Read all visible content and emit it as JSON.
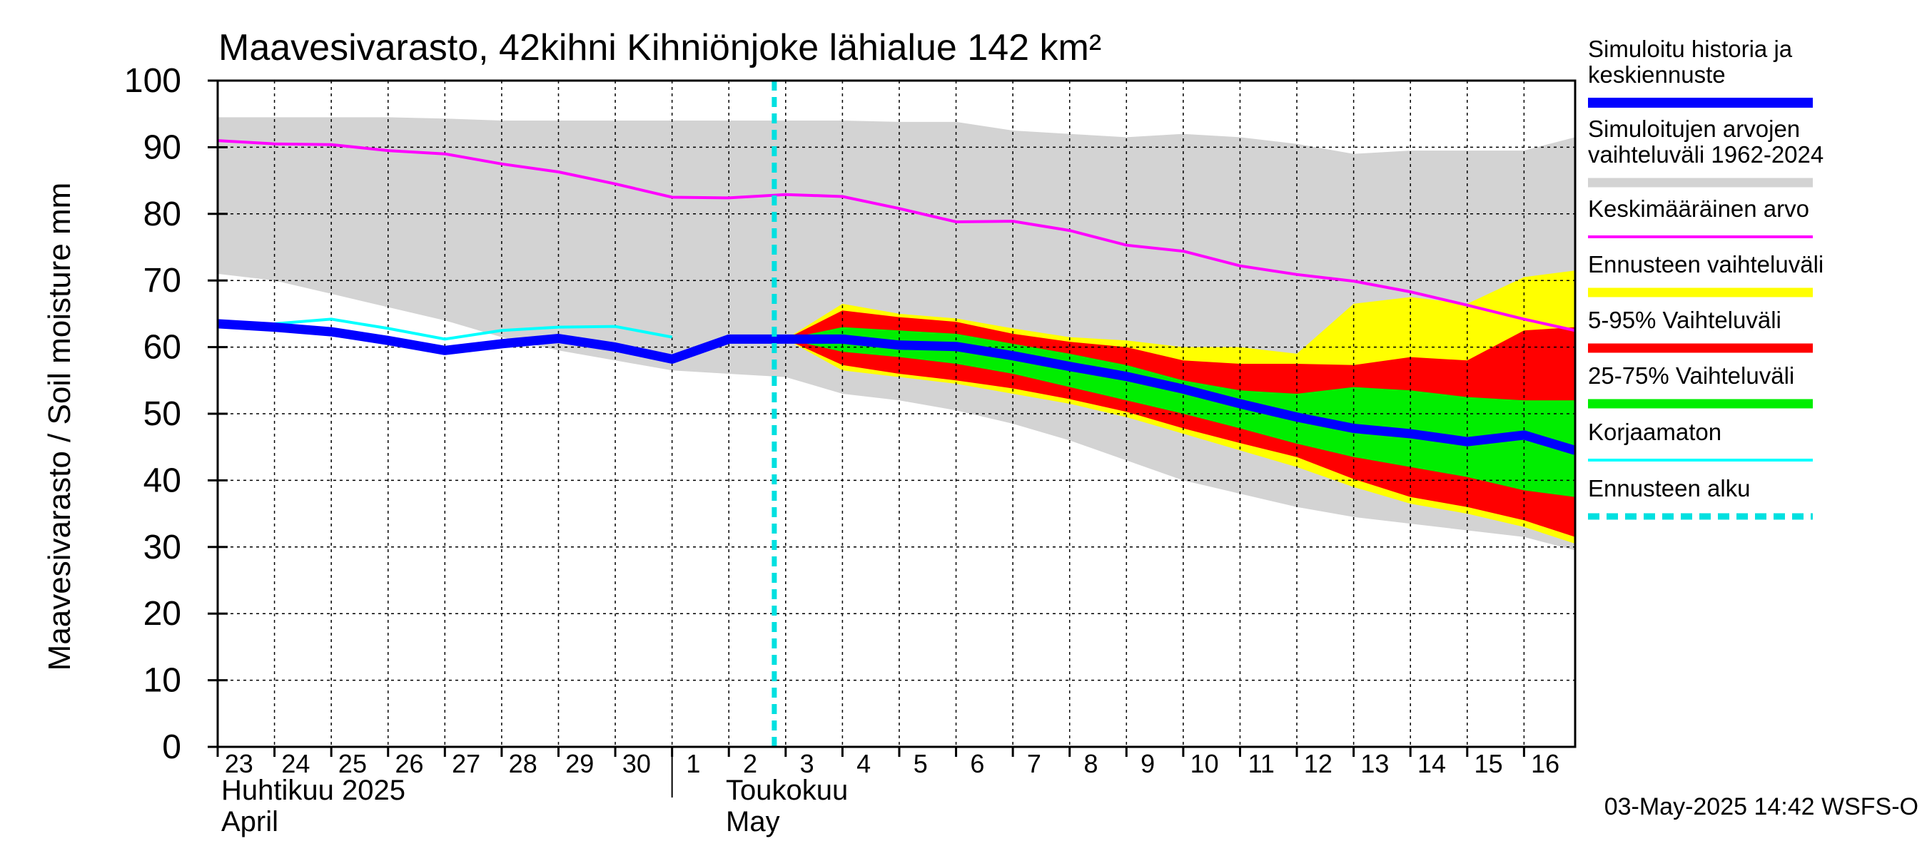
{
  "chart_data": {
    "type": "area",
    "title": "Maavesivarasto, 42kihni Kihniönjoke lähialue 142 km²",
    "ylabel": "Maavesivarasto / Soil moisture   mm",
    "ylim": [
      0,
      100
    ],
    "yticks": [
      "0",
      "10",
      "20",
      "30",
      "40",
      "50",
      "60",
      "70",
      "80",
      "90",
      "100"
    ],
    "grid": true,
    "legend_position": "right",
    "day_ticks": [
      "23",
      "24",
      "25",
      "26",
      "27",
      "28",
      "29",
      "30",
      "1",
      "2",
      "3",
      "4",
      "5",
      "6",
      "7",
      "8",
      "9",
      "10",
      "11",
      "12",
      "13",
      "14",
      "15",
      "16"
    ],
    "x_start": "2025-04-23",
    "x_end": "2025-05-16",
    "month_labels": {
      "april_fi": "Huhtikuu  2025",
      "april_en": "April",
      "may_fi": "Toukokuu",
      "may_en": "May"
    },
    "forecast_start": "2025-05-03",
    "timestamp": "03-May-2025 14:42 WSFS-O",
    "colors": {
      "history": "#0000ff",
      "range": "#d3d3d3",
      "mean": "#ff00ff",
      "ennuste": "#ffff00",
      "p5_95": "#ff0000",
      "p25_75": "#00ee00",
      "korjaamaton": "#00ffff",
      "start": "#00e0e0"
    },
    "legend": [
      {
        "key": "history",
        "label": "Simuloitu historia ja keskiennuste",
        "style": "thick"
      },
      {
        "key": "range",
        "label": "Simuloitujen arvojen vaihteluväli 1962-2024",
        "style": "band"
      },
      {
        "key": "mean",
        "label": "Keskimääräinen arvo",
        "style": "thin"
      },
      {
        "key": "ennuste",
        "label": "Ennusteen vaihteluväli",
        "style": "band"
      },
      {
        "key": "p5_95",
        "label": "5-95% Vaihteluväli",
        "style": "band"
      },
      {
        "key": "p25_75",
        "label": "25-75% Vaihteluväli",
        "style": "band"
      },
      {
        "key": "korjaamaton",
        "label": "Korjaamaton",
        "style": "thin"
      },
      {
        "key": "start",
        "label": "Ennusteen alku",
        "style": "dashed"
      }
    ],
    "series": {
      "range_upper": [
        [
          0,
          94.5
        ],
        [
          1,
          94.5
        ],
        [
          2,
          94.5
        ],
        [
          3,
          94.5
        ],
        [
          4,
          94.3
        ],
        [
          5,
          94.0
        ],
        [
          6,
          94.0
        ],
        [
          7,
          94.0
        ],
        [
          8,
          94.0
        ],
        [
          9,
          94.0
        ],
        [
          10,
          94.0
        ],
        [
          11,
          94.0
        ],
        [
          12,
          93.8
        ],
        [
          13,
          93.8
        ],
        [
          14,
          92.5
        ],
        [
          15,
          92.0
        ],
        [
          16,
          91.5
        ],
        [
          17,
          92.0
        ],
        [
          18,
          91.5
        ],
        [
          19,
          90.5
        ],
        [
          20,
          89.0
        ],
        [
          21,
          89.5
        ],
        [
          22,
          89.5
        ],
        [
          23,
          89.5
        ],
        [
          23.9,
          91.5
        ]
      ],
      "range_lower": [
        [
          0,
          71.0
        ],
        [
          1,
          70.0
        ],
        [
          2,
          68.0
        ],
        [
          3,
          66.0
        ],
        [
          4,
          64.0
        ],
        [
          5,
          61.5
        ],
        [
          6,
          59.5
        ],
        [
          7,
          58.0
        ],
        [
          8,
          56.5
        ],
        [
          9,
          56.0
        ],
        [
          10,
          55.5
        ],
        [
          11,
          53.0
        ],
        [
          12,
          52.0
        ],
        [
          13,
          50.5
        ],
        [
          14,
          48.5
        ],
        [
          15,
          46.0
        ],
        [
          16,
          43.0
        ],
        [
          17,
          40.0
        ],
        [
          18,
          38.0
        ],
        [
          19,
          36.0
        ],
        [
          20,
          34.5
        ],
        [
          21,
          33.5
        ],
        [
          22,
          32.5
        ],
        [
          23,
          31.5
        ],
        [
          23.9,
          29.5
        ]
      ],
      "mean": [
        [
          0,
          91.0
        ],
        [
          1,
          90.5
        ],
        [
          2,
          90.4
        ],
        [
          3,
          89.5
        ],
        [
          4,
          89.0
        ],
        [
          5,
          87.5
        ],
        [
          6,
          86.3
        ],
        [
          7,
          84.5
        ],
        [
          8,
          82.5
        ],
        [
          9,
          82.4
        ],
        [
          10,
          82.9
        ],
        [
          11,
          82.6
        ],
        [
          12,
          80.8
        ],
        [
          13,
          78.8
        ],
        [
          14,
          78.9
        ],
        [
          15,
          77.5
        ],
        [
          16,
          75.3
        ],
        [
          17,
          74.4
        ],
        [
          18,
          72.2
        ],
        [
          19,
          70.9
        ],
        [
          20,
          69.9
        ],
        [
          21,
          68.3
        ],
        [
          22,
          66.3
        ],
        [
          23,
          64.2
        ],
        [
          23.9,
          62.5
        ]
      ],
      "korjaamaton": [
        [
          0,
          63.0
        ],
        [
          1,
          63.5
        ],
        [
          2,
          64.2
        ],
        [
          3,
          62.8
        ],
        [
          4,
          61.2
        ],
        [
          5,
          62.5
        ],
        [
          6,
          63.0
        ],
        [
          7,
          63.1
        ],
        [
          8,
          61.5
        ]
      ],
      "history": [
        [
          0,
          63.5
        ],
        [
          1,
          63.0
        ],
        [
          2,
          62.3
        ],
        [
          3,
          61.0
        ],
        [
          4,
          59.5
        ],
        [
          5,
          60.5
        ],
        [
          6,
          61.3
        ],
        [
          7,
          60.0
        ],
        [
          8,
          58.2
        ],
        [
          9,
          61.2
        ],
        [
          10,
          61.2
        ],
        [
          11,
          61.2
        ],
        [
          12,
          60.3
        ],
        [
          13,
          60.1
        ],
        [
          14,
          58.7
        ],
        [
          15,
          57.1
        ],
        [
          16,
          55.6
        ],
        [
          17,
          53.7
        ],
        [
          18,
          51.5
        ],
        [
          19,
          49.5
        ],
        [
          20,
          47.8
        ],
        [
          21,
          47.0
        ],
        [
          22,
          45.8
        ],
        [
          23,
          46.8
        ],
        [
          23.9,
          44.5
        ]
      ],
      "ennuste_upper": [
        [
          10,
          61.2
        ],
        [
          11,
          66.5
        ],
        [
          12,
          65.0
        ],
        [
          13,
          64.3
        ],
        [
          14,
          62.8
        ],
        [
          15,
          61.5
        ],
        [
          16,
          61.0
        ],
        [
          17,
          60.0
        ],
        [
          18,
          60.0
        ],
        [
          19,
          59.0
        ],
        [
          20,
          66.5
        ],
        [
          21,
          67.5
        ],
        [
          22,
          66.5
        ],
        [
          23,
          70.5
        ],
        [
          23.9,
          71.5
        ]
      ],
      "ennuste_lower": [
        [
          10,
          61.2
        ],
        [
          11,
          56.5
        ],
        [
          12,
          55.5
        ],
        [
          13,
          54.5
        ],
        [
          14,
          53.0
        ],
        [
          15,
          51.5
        ],
        [
          16,
          49.5
        ],
        [
          17,
          47.0
        ],
        [
          18,
          44.5
        ],
        [
          19,
          42.0
        ],
        [
          20,
          39.0
        ],
        [
          21,
          36.5
        ],
        [
          22,
          35.0
        ],
        [
          23,
          33.0
        ],
        [
          23.9,
          30.5
        ]
      ],
      "p5_95_upper": [
        [
          10,
          61.2
        ],
        [
          11,
          65.5
        ],
        [
          12,
          64.5
        ],
        [
          13,
          63.8
        ],
        [
          14,
          62.0
        ],
        [
          15,
          60.8
        ],
        [
          16,
          60.0
        ],
        [
          17,
          58.0
        ],
        [
          18,
          57.5
        ],
        [
          19,
          57.5
        ],
        [
          20,
          57.3
        ],
        [
          21,
          58.5
        ],
        [
          22,
          58.0
        ],
        [
          23,
          62.5
        ],
        [
          23.9,
          63.0
        ]
      ],
      "p5_95_lower": [
        [
          10,
          61.2
        ],
        [
          11,
          57.3
        ],
        [
          12,
          56.0
        ],
        [
          13,
          55.0
        ],
        [
          14,
          53.8
        ],
        [
          15,
          52.2
        ],
        [
          16,
          50.3
        ],
        [
          17,
          47.8
        ],
        [
          18,
          45.6
        ],
        [
          19,
          43.5
        ],
        [
          20,
          40.2
        ],
        [
          21,
          37.5
        ],
        [
          22,
          36.0
        ],
        [
          23,
          34.0
        ],
        [
          23.9,
          31.5
        ]
      ],
      "p25_75_upper": [
        [
          10,
          61.2
        ],
        [
          11,
          63.0
        ],
        [
          12,
          62.5
        ],
        [
          13,
          62.0
        ],
        [
          14,
          60.5
        ],
        [
          15,
          59.0
        ],
        [
          16,
          57.3
        ],
        [
          17,
          55.0
        ],
        [
          18,
          53.5
        ],
        [
          19,
          53.0
        ],
        [
          20,
          54.0
        ],
        [
          21,
          53.5
        ],
        [
          22,
          52.5
        ],
        [
          23,
          52.0
        ],
        [
          23.9,
          52.0
        ]
      ],
      "p25_75_lower": [
        [
          10,
          61.2
        ],
        [
          11,
          59.3
        ],
        [
          12,
          58.5
        ],
        [
          13,
          57.5
        ],
        [
          14,
          56.0
        ],
        [
          15,
          54.0
        ],
        [
          16,
          52.0
        ],
        [
          17,
          50.0
        ],
        [
          18,
          47.8
        ],
        [
          19,
          45.5
        ],
        [
          20,
          43.5
        ],
        [
          21,
          42.0
        ],
        [
          22,
          40.5
        ],
        [
          23,
          38.5
        ],
        [
          23.9,
          37.5
        ]
      ]
    }
  }
}
